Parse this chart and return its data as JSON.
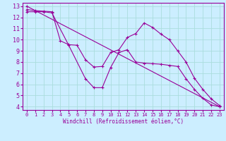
{
  "bg_color": "#cceeff",
  "line_color": "#990099",
  "grid_color": "#aadddd",
  "xlabel": "Windchill (Refroidissement éolien,°C)",
  "xlabel_color": "#990099",
  "xlim": [
    -0.5,
    23.5
  ],
  "ylim": [
    3.7,
    13.3
  ],
  "yticks": [
    4,
    5,
    6,
    7,
    8,
    9,
    10,
    11,
    12,
    13
  ],
  "xticks": [
    0,
    1,
    2,
    3,
    4,
    5,
    6,
    7,
    8,
    9,
    10,
    11,
    12,
    13,
    14,
    15,
    16,
    17,
    18,
    19,
    20,
    21,
    22,
    23
  ],
  "line1_x": [
    0,
    23
  ],
  "line1_y": [
    13.0,
    4.0
  ],
  "line2_x": [
    0,
    1,
    2,
    3,
    4,
    5,
    6,
    7,
    8,
    9,
    10,
    11,
    12,
    13,
    14,
    15,
    16,
    17,
    18,
    19,
    20,
    21,
    22,
    23
  ],
  "line2_y": [
    12.7,
    12.6,
    12.55,
    12.5,
    9.9,
    9.55,
    9.5,
    8.2,
    7.55,
    7.6,
    8.85,
    9.1,
    10.2,
    10.55,
    11.5,
    11.1,
    10.5,
    10.0,
    9.0,
    8.0,
    6.55,
    5.55,
    4.7,
    4.1
  ],
  "line3_x": [
    0,
    1,
    2,
    3,
    5,
    7,
    8,
    9,
    10,
    11,
    12,
    13,
    14,
    15,
    16,
    17,
    18,
    19,
    20,
    21,
    22,
    23
  ],
  "line3_y": [
    12.5,
    12.5,
    12.5,
    12.4,
    9.5,
    6.5,
    5.7,
    5.7,
    7.5,
    8.85,
    9.1,
    8.0,
    7.9,
    7.85,
    7.8,
    7.7,
    7.6,
    6.5,
    5.55,
    4.75,
    4.15,
    4.0
  ]
}
